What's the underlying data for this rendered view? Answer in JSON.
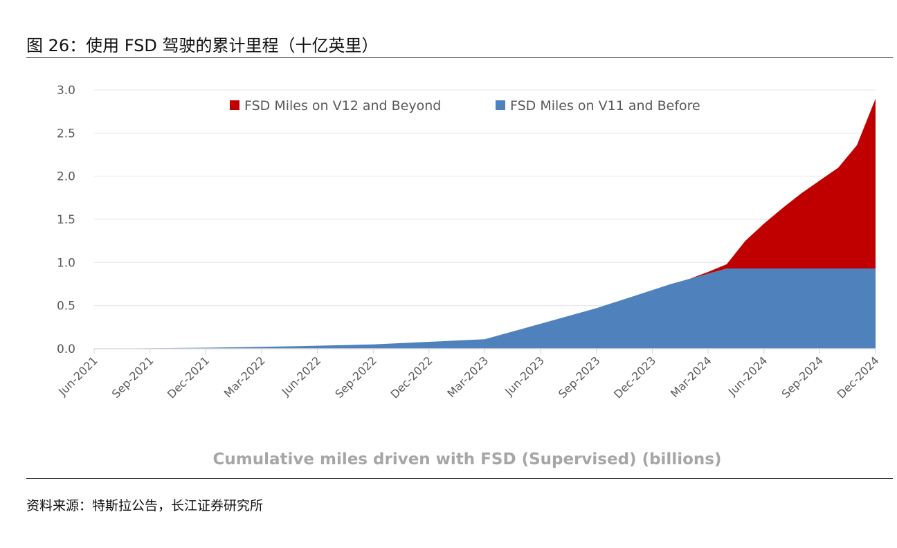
{
  "figure": {
    "title": "图 26：使用 FSD 驾驶的累计里程（十亿英里）",
    "source": "资料来源：特斯拉公告，长江证券研究所"
  },
  "chart_data": {
    "type": "area",
    "stacked": true,
    "title": "",
    "xlabel": "Cumulative miles driven with FSD (Supervised) (billions)",
    "ylabel": "",
    "ylim": [
      0,
      3.0
    ],
    "yticks": [
      "0.0",
      "0.5",
      "1.0",
      "1.5",
      "2.0",
      "2.5",
      "3.0"
    ],
    "grid": true,
    "legend_position": "top",
    "x_tick_labels": [
      "Jun-2021",
      "Sep-2021",
      "Dec-2021",
      "Mar-2022",
      "Jun-2022",
      "Sep-2022",
      "Dec-2022",
      "Mar-2023",
      "Jun-2023",
      "Sep-2023",
      "Dec-2023",
      "Mar-2024",
      "Jun-2024",
      "Sep-2024",
      "Dec-2024"
    ],
    "x_months": [
      "2021-06",
      "2021-07",
      "2021-08",
      "2021-09",
      "2021-10",
      "2021-11",
      "2021-12",
      "2022-01",
      "2022-02",
      "2022-03",
      "2022-04",
      "2022-05",
      "2022-06",
      "2022-07",
      "2022-08",
      "2022-09",
      "2022-10",
      "2022-11",
      "2022-12",
      "2023-01",
      "2023-02",
      "2023-03",
      "2023-04",
      "2023-05",
      "2023-06",
      "2023-07",
      "2023-08",
      "2023-09",
      "2023-10",
      "2023-11",
      "2023-12",
      "2024-01",
      "2024-02",
      "2024-03",
      "2024-04",
      "2024-05",
      "2024-06",
      "2024-07",
      "2024-08",
      "2024-09",
      "2024-10",
      "2024-11",
      "2024-12"
    ],
    "series": [
      {
        "name": "FSD Miles on V11 and Before",
        "color": "#4f81bd",
        "values": [
          0.0,
          0.002,
          0.004,
          0.006,
          0.008,
          0.01,
          0.012,
          0.015,
          0.018,
          0.022,
          0.026,
          0.03,
          0.035,
          0.04,
          0.045,
          0.05,
          0.06,
          0.07,
          0.08,
          0.09,
          0.1,
          0.11,
          0.17,
          0.23,
          0.29,
          0.35,
          0.41,
          0.47,
          0.54,
          0.61,
          0.68,
          0.75,
          0.81,
          0.87,
          0.93,
          0.93,
          0.93,
          0.93,
          0.93,
          0.93,
          0.93,
          0.93,
          0.93
        ]
      },
      {
        "name": "FSD Miles on V12 and Beyond",
        "color": "#c00000",
        "values": [
          0,
          0,
          0,
          0,
          0,
          0,
          0,
          0,
          0,
          0,
          0,
          0,
          0,
          0,
          0,
          0,
          0,
          0,
          0,
          0,
          0,
          0,
          0,
          0,
          0,
          0,
          0,
          0,
          0,
          0,
          0,
          0,
          0,
          0.02,
          0.05,
          0.32,
          0.52,
          0.7,
          0.87,
          1.02,
          1.17,
          1.43,
          1.97
        ]
      }
    ]
  }
}
